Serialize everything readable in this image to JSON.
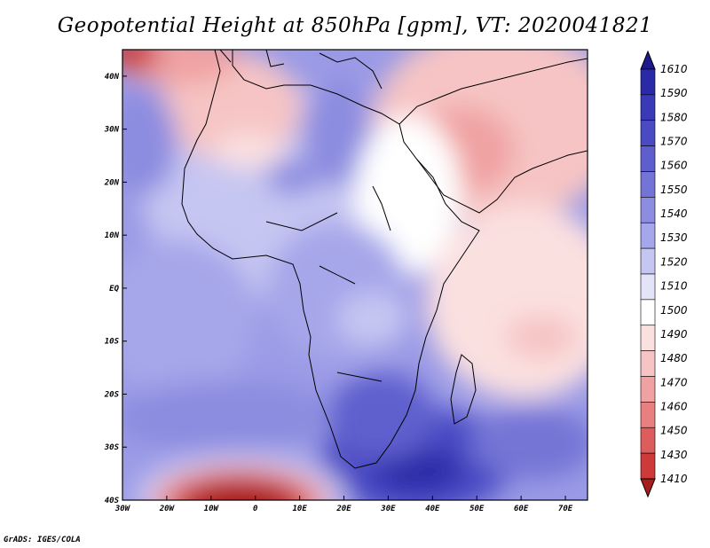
{
  "title": "Geopotential Height at 850hPa [gpm], VT: 2020041821",
  "credit": "GrADS: IGES/COLA",
  "axes": {
    "lon_labels": [
      "30W",
      "20W",
      "10W",
      "0",
      "10E",
      "20E",
      "30E",
      "40E",
      "50E",
      "60E",
      "70E"
    ],
    "lat_labels": [
      "40N",
      "30N",
      "20N",
      "10N",
      "EQ",
      "10S",
      "20S",
      "30S",
      "40S"
    ]
  },
  "colorbar": {
    "labels": [
      "1610",
      "1590",
      "1580",
      "1570",
      "1560",
      "1550",
      "1540",
      "1530",
      "1520",
      "1510",
      "1500",
      "1490",
      "1480",
      "1470",
      "1460",
      "1450",
      "1430",
      "1410"
    ],
    "colors": [
      "#1e1a8c",
      "#2a2aa8",
      "#3a3ab8",
      "#4a4ac4",
      "#5e5ece",
      "#7474d6",
      "#8c8ce0",
      "#a6a6ea",
      "#c6c6f2",
      "#e4e4f8",
      "#ffffff",
      "#fbe0e0",
      "#f6c4c4",
      "#f0a2a2",
      "#e88080",
      "#dd5c5c",
      "#cc3a3a",
      "#a81e1e"
    ]
  }
}
